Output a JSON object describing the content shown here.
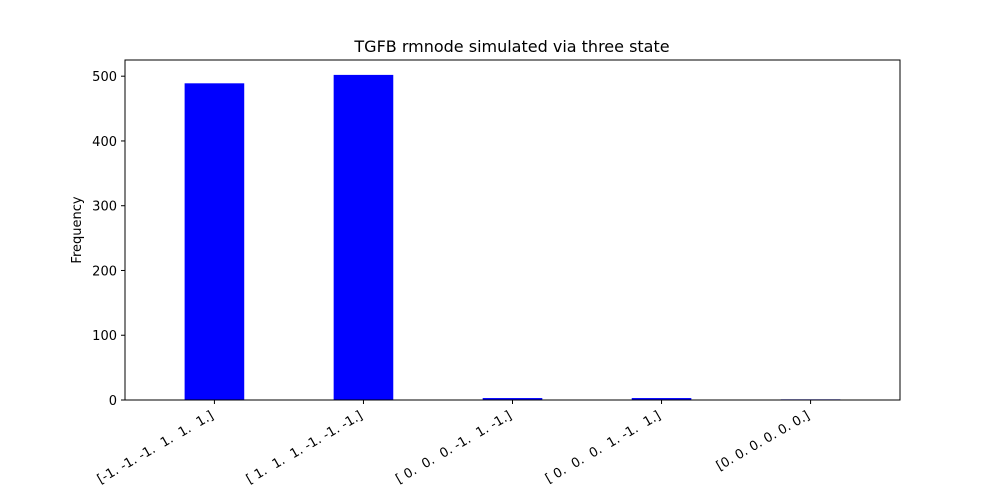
{
  "chart_data": {
    "type": "bar",
    "title": "TGFB rmnode simulated via three state",
    "xlabel": "",
    "ylabel": "Frequency",
    "categories": [
      "[-1. -1. -1.  1.  1.  1.]",
      "[ 1.  1.  1. -1. -1. -1.]",
      "[ 0.  0.  0. -1.  1. -1.]",
      "[ 0.  0.  0.  1. -1.  1.]",
      "[0. 0. 0. 0. 0. 0.]"
    ],
    "values": [
      489,
      502,
      3,
      3,
      1
    ],
    "ylim": [
      0,
      525
    ],
    "yticks": [
      0,
      100,
      200,
      300,
      400,
      500
    ],
    "bar_color": "#0000ff",
    "grid": false,
    "legend": "none"
  }
}
